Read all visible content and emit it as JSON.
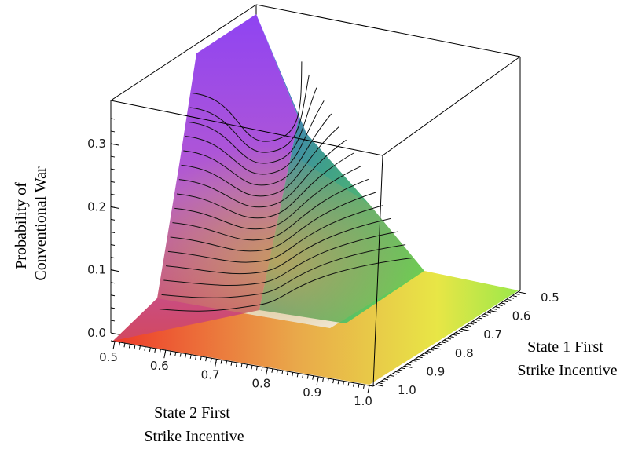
{
  "chart_data": {
    "type": "surface",
    "zlabel_lines": [
      "Probability of",
      "Conventional War"
    ],
    "xlabel_lines": [
      "State 2 First",
      "Strike Incentive"
    ],
    "ylabel_lines": [
      "State 1 First",
      "Strike Incentive"
    ],
    "x_ticks": [
      "0.5",
      "0.6",
      "0.7",
      "0.8",
      "0.9",
      "1.0"
    ],
    "y_ticks": [
      "0.5",
      "0.6",
      "0.7",
      "0.8",
      "0.9",
      "1.0"
    ],
    "z_ticks": [
      "0.0",
      "0.1",
      "0.2",
      "0.3"
    ],
    "x_range": [
      0.5,
      1.0
    ],
    "y_range": [
      0.5,
      1.0
    ],
    "z_range": [
      0.0,
      0.36
    ],
    "contour_levels": [
      0.02,
      0.04,
      0.06,
      0.08,
      0.1,
      0.12,
      0.14,
      0.16,
      0.18,
      0.2,
      0.22,
      0.24,
      0.26,
      0.28,
      0.3,
      0.32
    ],
    "surface_points": [
      {
        "x": 0.5,
        "y": 0.5,
        "z": 0.36
      },
      {
        "x": 0.5,
        "y": 1.0,
        "z": 0.0
      },
      {
        "x": 1.0,
        "y": 0.5,
        "z": 0.0
      },
      {
        "x": 1.0,
        "y": 1.0,
        "z": 0.0
      }
    ],
    "colors": {
      "low_corner": "#ee3a2a",
      "mid": "#e6c24a",
      "high_x": "#e8f040",
      "high_y": "#6ee24a",
      "peak": "#9a3af0",
      "peak_blue": "#3a5ef0"
    }
  }
}
